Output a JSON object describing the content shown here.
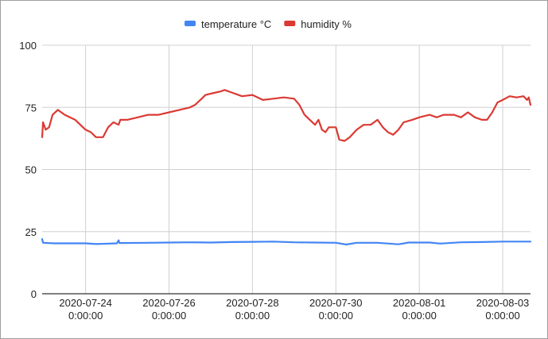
{
  "chart_data": {
    "type": "line",
    "title": "",
    "xlabel": "",
    "ylabel": "",
    "legend_position": "top",
    "grid": true,
    "ylim": [
      0,
      100
    ],
    "xlim": [
      "2020-07-22 23:00",
      "2020-08-03 16:00"
    ],
    "yticks": [
      "0",
      "25",
      "50",
      "75",
      "100"
    ],
    "xticks": [
      {
        "x": "2020-07-24 00:00",
        "date": "2020-07-24",
        "time": "0:00:00"
      },
      {
        "x": "2020-07-26 00:00",
        "date": "2020-07-26",
        "time": "0:00:00"
      },
      {
        "x": "2020-07-28 00:00",
        "date": "2020-07-28",
        "time": "0:00:00"
      },
      {
        "x": "2020-07-30 00:00",
        "date": "2020-07-30",
        "time": "0:00:00"
      },
      {
        "x": "2020-08-01 00:00",
        "date": "2020-08-01",
        "time": "0:00:00"
      },
      {
        "x": "2020-08-03 00:00",
        "date": "2020-08-03",
        "time": "0:00:00"
      }
    ],
    "series": [
      {
        "name": "temperature °C",
        "color": "#4285f4",
        "points": [
          [
            "2020-07-22 23:00",
            22.0
          ],
          [
            "2020-07-22 23:30",
            20.5
          ],
          [
            "2020-07-23 06:00",
            20.3
          ],
          [
            "2020-07-24 00:00",
            20.3
          ],
          [
            "2020-07-24 06:00",
            20.0
          ],
          [
            "2020-07-24 18:00",
            20.3
          ],
          [
            "2020-07-24 19:00",
            21.5
          ],
          [
            "2020-07-24 19:30",
            20.4
          ],
          [
            "2020-07-25 12:00",
            20.5
          ],
          [
            "2020-07-26 00:00",
            20.6
          ],
          [
            "2020-07-26 12:00",
            20.7
          ],
          [
            "2020-07-27 00:00",
            20.6
          ],
          [
            "2020-07-27 12:00",
            20.8
          ],
          [
            "2020-07-28 00:00",
            20.9
          ],
          [
            "2020-07-28 12:00",
            21.0
          ],
          [
            "2020-07-29 00:00",
            20.7
          ],
          [
            "2020-07-29 12:00",
            20.6
          ],
          [
            "2020-07-30 00:00",
            20.5
          ],
          [
            "2020-07-30 06:00",
            19.8
          ],
          [
            "2020-07-30 12:00",
            20.5
          ],
          [
            "2020-07-31 00:00",
            20.5
          ],
          [
            "2020-07-31 12:00",
            19.9
          ],
          [
            "2020-07-31 18:00",
            20.6
          ],
          [
            "2020-08-01 06:00",
            20.6
          ],
          [
            "2020-08-01 12:00",
            20.2
          ],
          [
            "2020-08-02 00:00",
            20.7
          ],
          [
            "2020-08-02 12:00",
            20.8
          ],
          [
            "2020-08-03 00:00",
            21.0
          ],
          [
            "2020-08-03 16:00",
            21.0
          ]
        ]
      },
      {
        "name": "humidity %",
        "color": "#db3a34",
        "points": [
          [
            "2020-07-22 23:00",
            63
          ],
          [
            "2020-07-22 23:30",
            69
          ],
          [
            "2020-07-23 01:00",
            66
          ],
          [
            "2020-07-23 03:00",
            67
          ],
          [
            "2020-07-23 05:00",
            72
          ],
          [
            "2020-07-23 08:00",
            74
          ],
          [
            "2020-07-23 12:00",
            72
          ],
          [
            "2020-07-23 18:00",
            70
          ],
          [
            "2020-07-24 00:00",
            66
          ],
          [
            "2020-07-24 03:00",
            65
          ],
          [
            "2020-07-24 06:00",
            63
          ],
          [
            "2020-07-24 10:00",
            63
          ],
          [
            "2020-07-24 13:00",
            67
          ],
          [
            "2020-07-24 16:00",
            69
          ],
          [
            "2020-07-24 19:00",
            68
          ],
          [
            "2020-07-24 20:00",
            70
          ],
          [
            "2020-07-25 00:00",
            70
          ],
          [
            "2020-07-25 06:00",
            71
          ],
          [
            "2020-07-25 12:00",
            72
          ],
          [
            "2020-07-25 18:00",
            72
          ],
          [
            "2020-07-26 00:00",
            73
          ],
          [
            "2020-07-26 06:00",
            74
          ],
          [
            "2020-07-26 12:00",
            75
          ],
          [
            "2020-07-26 15:00",
            76
          ],
          [
            "2020-07-26 18:00",
            78
          ],
          [
            "2020-07-26 21:00",
            80
          ],
          [
            "2020-07-27 00:00",
            80.5
          ],
          [
            "2020-07-27 03:00",
            81
          ],
          [
            "2020-07-27 06:00",
            81.5
          ],
          [
            "2020-07-27 08:00",
            82
          ],
          [
            "2020-07-27 12:00",
            81
          ],
          [
            "2020-07-27 18:00",
            79.5
          ],
          [
            "2020-07-28 00:00",
            80
          ],
          [
            "2020-07-28 06:00",
            78
          ],
          [
            "2020-07-28 12:00",
            78.5
          ],
          [
            "2020-07-28 18:00",
            79
          ],
          [
            "2020-07-29 00:00",
            78.5
          ],
          [
            "2020-07-29 03:00",
            76
          ],
          [
            "2020-07-29 06:00",
            72
          ],
          [
            "2020-07-29 09:00",
            70
          ],
          [
            "2020-07-29 12:00",
            68
          ],
          [
            "2020-07-29 14:00",
            70
          ],
          [
            "2020-07-29 16:00",
            66
          ],
          [
            "2020-07-29 18:00",
            65
          ],
          [
            "2020-07-29 20:00",
            67
          ],
          [
            "2020-07-30 00:00",
            67
          ],
          [
            "2020-07-30 02:00",
            62
          ],
          [
            "2020-07-30 05:00",
            61.5
          ],
          [
            "2020-07-30 08:00",
            63
          ],
          [
            "2020-07-30 12:00",
            66
          ],
          [
            "2020-07-30 16:00",
            68
          ],
          [
            "2020-07-30 20:00",
            68
          ],
          [
            "2020-07-31 00:00",
            70
          ],
          [
            "2020-07-31 03:00",
            67
          ],
          [
            "2020-07-31 06:00",
            65
          ],
          [
            "2020-07-31 09:00",
            64
          ],
          [
            "2020-07-31 12:00",
            66
          ],
          [
            "2020-07-31 15:00",
            69
          ],
          [
            "2020-07-31 20:00",
            70
          ],
          [
            "2020-08-01 00:00",
            71
          ],
          [
            "2020-08-01 03:00",
            71.5
          ],
          [
            "2020-08-01 06:00",
            72
          ],
          [
            "2020-08-01 10:00",
            71
          ],
          [
            "2020-08-01 14:00",
            72
          ],
          [
            "2020-08-01 20:00",
            72
          ],
          [
            "2020-08-02 00:00",
            71
          ],
          [
            "2020-08-02 04:00",
            73
          ],
          [
            "2020-08-02 08:00",
            71
          ],
          [
            "2020-08-02 12:00",
            70
          ],
          [
            "2020-08-02 15:00",
            70
          ],
          [
            "2020-08-02 18:00",
            73
          ],
          [
            "2020-08-02 21:00",
            77
          ],
          [
            "2020-08-03 00:00",
            78
          ],
          [
            "2020-08-03 04:00",
            79.5
          ],
          [
            "2020-08-03 08:00",
            79
          ],
          [
            "2020-08-03 12:00",
            79.5
          ],
          [
            "2020-08-03 14:00",
            78
          ],
          [
            "2020-08-03 15:00",
            79
          ],
          [
            "2020-08-03 16:00",
            76
          ]
        ]
      }
    ]
  }
}
